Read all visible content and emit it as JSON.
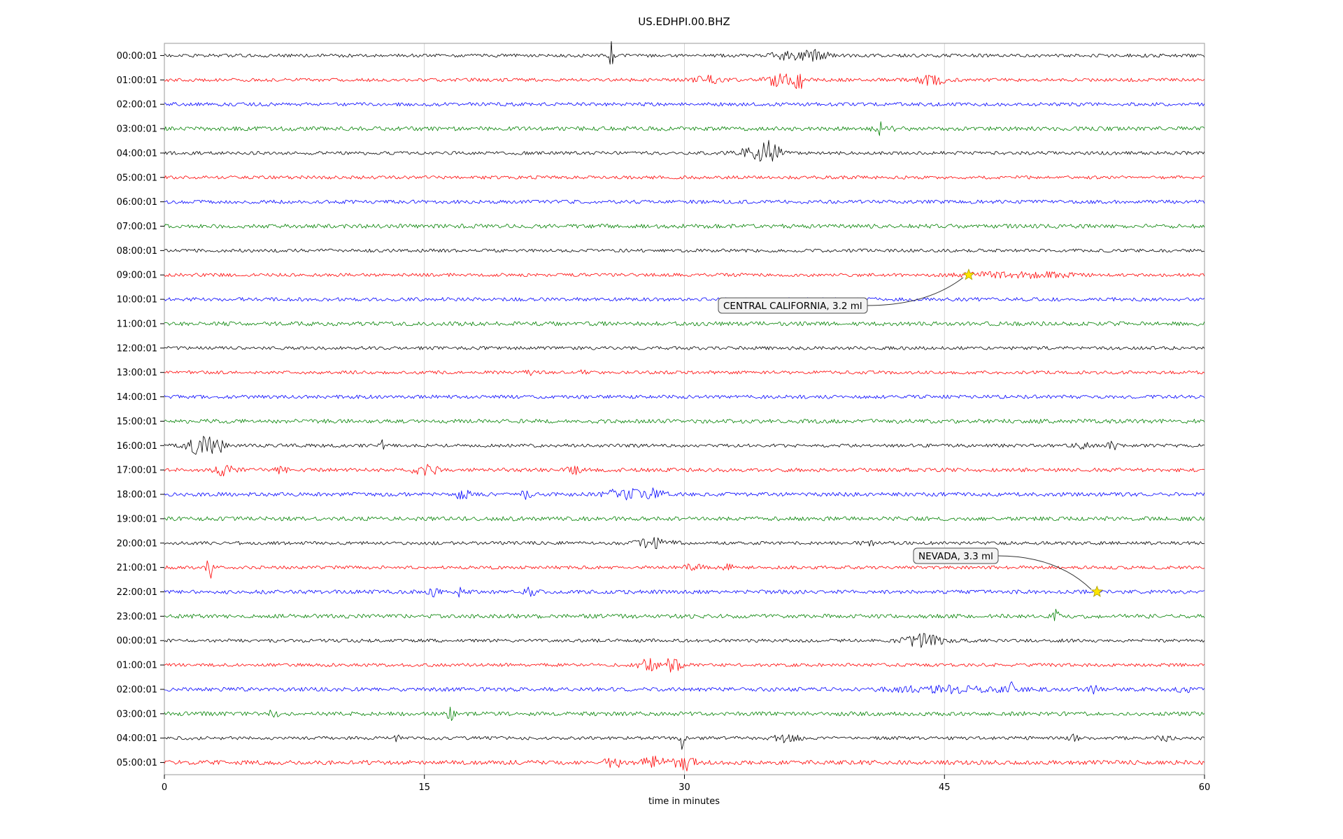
{
  "figure": {
    "title": "US.EDHPI.00.BHZ"
  },
  "chart_data": {
    "type": "line",
    "subtype": "helicorder-seismogram",
    "title": "US.EDHPI.00.BHZ",
    "xlabel": "time in minutes",
    "xlim": [
      0,
      60
    ],
    "x_ticks": [
      "0",
      "15",
      "30",
      "45",
      "60"
    ],
    "x_tick_values": [
      0,
      15,
      30,
      45,
      60
    ],
    "grid": true,
    "grid_color": "#c8c8c8",
    "color_cycle": [
      "#000000",
      "#ff0000",
      "#0000ff",
      "#008000"
    ],
    "marker": {
      "shape": "star",
      "fill": "#ffe600",
      "stroke": "#a89b00"
    },
    "rows": [
      {
        "label": "00:00:01",
        "color": "#000000",
        "noise": 2.4,
        "events": [
          {
            "m": 25.8,
            "a": 20,
            "w": 0.18
          },
          {
            "m": 36.3,
            "a": 8,
            "w": 1.2
          },
          {
            "m": 37.8,
            "a": 6,
            "w": 0.5
          }
        ]
      },
      {
        "label": "01:00:01",
        "color": "#ff0000",
        "noise": 2.4,
        "events": [
          {
            "m": 31.3,
            "a": 5,
            "w": 0.7
          },
          {
            "m": 35.6,
            "a": 8,
            "w": 1.0
          },
          {
            "m": 36.6,
            "a": 13,
            "w": 0.25
          },
          {
            "m": 44.2,
            "a": 7,
            "w": 0.9
          }
        ]
      },
      {
        "label": "02:00:01",
        "color": "#0000ff",
        "noise": 2.6,
        "events": []
      },
      {
        "label": "03:00:01",
        "color": "#008000",
        "noise": 3.0,
        "events": [
          {
            "m": 41.5,
            "a": 10,
            "w": 0.5
          }
        ]
      },
      {
        "label": "04:00:01",
        "color": "#000000",
        "noise": 2.4,
        "events": [
          {
            "m": 34.3,
            "a": 9,
            "w": 1.1
          },
          {
            "m": 35.0,
            "a": 17,
            "w": 0.4
          }
        ]
      },
      {
        "label": "05:00:01",
        "color": "#ff0000",
        "noise": 2.4,
        "events": []
      },
      {
        "label": "06:00:01",
        "color": "#0000ff",
        "noise": 2.6,
        "events": []
      },
      {
        "label": "07:00:01",
        "color": "#008000",
        "noise": 3.0,
        "events": []
      },
      {
        "label": "08:00:01",
        "color": "#000000",
        "noise": 2.4,
        "events": []
      },
      {
        "label": "09:00:01",
        "color": "#ff0000",
        "noise": 2.4,
        "events": [
          {
            "m": 48.0,
            "a": 3,
            "w": 2.0
          },
          {
            "m": 51.0,
            "a": 3,
            "w": 1.5
          }
        ]
      },
      {
        "label": "10:00:01",
        "color": "#0000ff",
        "noise": 2.6,
        "events": []
      },
      {
        "label": "11:00:01",
        "color": "#008000",
        "noise": 3.0,
        "events": []
      },
      {
        "label": "12:00:01",
        "color": "#000000",
        "noise": 2.4,
        "events": []
      },
      {
        "label": "13:00:01",
        "color": "#ff0000",
        "noise": 2.4,
        "events": [
          {
            "m": 21.0,
            "a": 3.5,
            "w": 0.3
          },
          {
            "m": 24.0,
            "a": 3.5,
            "w": 0.3
          }
        ]
      },
      {
        "label": "14:00:01",
        "color": "#0000ff",
        "noise": 2.6,
        "events": []
      },
      {
        "label": "15:00:01",
        "color": "#008000",
        "noise": 3.0,
        "events": []
      },
      {
        "label": "16:00:01",
        "color": "#000000",
        "noise": 2.4,
        "events": [
          {
            "m": 2.2,
            "a": 13,
            "w": 0.8
          },
          {
            "m": 3.1,
            "a": 8,
            "w": 0.4
          },
          {
            "m": 12.6,
            "a": 8,
            "w": 0.15
          },
          {
            "m": 53.0,
            "a": 4,
            "w": 0.4
          },
          {
            "m": 54.7,
            "a": 5,
            "w": 0.3
          }
        ]
      },
      {
        "label": "17:00:01",
        "color": "#ff0000",
        "noise": 2.8,
        "events": [
          {
            "m": 3.5,
            "a": 8,
            "w": 0.5
          },
          {
            "m": 6.7,
            "a": 4,
            "w": 0.4
          },
          {
            "m": 15.1,
            "a": 7,
            "w": 0.7
          },
          {
            "m": 23.6,
            "a": 7,
            "w": 0.35
          }
        ]
      },
      {
        "label": "18:00:01",
        "color": "#0000ff",
        "noise": 2.8,
        "events": [
          {
            "m": 17.2,
            "a": 6,
            "w": 0.4
          },
          {
            "m": 20.9,
            "a": 6,
            "w": 0.4
          },
          {
            "m": 26.5,
            "a": 8,
            "w": 0.9
          },
          {
            "m": 28.2,
            "a": 7,
            "w": 0.6
          }
        ]
      },
      {
        "label": "19:00:01",
        "color": "#008000",
        "noise": 3.0,
        "events": []
      },
      {
        "label": "20:00:01",
        "color": "#000000",
        "noise": 2.4,
        "events": [
          {
            "m": 28.3,
            "a": 7,
            "w": 0.9
          },
          {
            "m": 40.5,
            "a": 4,
            "w": 0.4
          }
        ]
      },
      {
        "label": "21:00:01",
        "color": "#ff0000",
        "noise": 2.4,
        "events": [
          {
            "m": 2.6,
            "a": 19,
            "w": 0.15
          },
          {
            "m": 30.6,
            "a": 6,
            "w": 0.5
          },
          {
            "m": 32.6,
            "a": 5,
            "w": 0.4
          }
        ]
      },
      {
        "label": "22:00:01",
        "color": "#0000ff",
        "noise": 2.8,
        "events": [
          {
            "m": 15.5,
            "a": 6,
            "w": 0.3
          },
          {
            "m": 17.0,
            "a": 9,
            "w": 0.2
          },
          {
            "m": 21.1,
            "a": 6,
            "w": 0.3
          }
        ]
      },
      {
        "label": "23:00:01",
        "color": "#008000",
        "noise": 3.0,
        "events": [
          {
            "m": 51.4,
            "a": 11,
            "w": 0.18
          }
        ]
      },
      {
        "label": "00:00:01",
        "color": "#000000",
        "noise": 2.4,
        "events": [
          {
            "m": 43.8,
            "a": 9,
            "w": 1.1
          }
        ]
      },
      {
        "label": "01:00:01",
        "color": "#ff0000",
        "noise": 2.4,
        "events": [
          {
            "m": 27.9,
            "a": 9,
            "w": 0.5
          },
          {
            "m": 29.3,
            "a": 10,
            "w": 0.5
          }
        ]
      },
      {
        "label": "02:00:01",
        "color": "#0000ff",
        "noise": 2.8,
        "events": [
          {
            "m": 45.0,
            "a": 4,
            "w": 3.5
          },
          {
            "m": 48.9,
            "a": 10,
            "w": 0.15
          },
          {
            "m": 53.6,
            "a": 5,
            "w": 0.3
          },
          {
            "m": 58.8,
            "a": 5,
            "w": 0.3
          }
        ]
      },
      {
        "label": "03:00:01",
        "color": "#008000",
        "noise": 3.0,
        "events": [
          {
            "m": 6.3,
            "a": 4,
            "w": 0.4
          },
          {
            "m": 16.5,
            "a": 9,
            "w": 0.2
          }
        ]
      },
      {
        "label": "04:00:01",
        "color": "#000000",
        "noise": 2.4,
        "events": [
          {
            "m": 13.4,
            "a": 5,
            "w": 0.2
          },
          {
            "m": 29.9,
            "a": 16,
            "w": 0.15
          },
          {
            "m": 35.9,
            "a": 5,
            "w": 0.7
          },
          {
            "m": 52.3,
            "a": 4,
            "w": 0.4
          },
          {
            "m": 57.7,
            "a": 5,
            "w": 0.3
          }
        ]
      },
      {
        "label": "05:00:01",
        "color": "#ff0000",
        "noise": 3.2,
        "events": [
          {
            "m": 25.9,
            "a": 6,
            "w": 0.5
          },
          {
            "m": 28.2,
            "a": 7,
            "w": 0.6
          },
          {
            "m": 29.9,
            "a": 13,
            "w": 0.6
          }
        ]
      }
    ],
    "annotations": [
      {
        "label": "CENTRAL CALIFORNIA, 3.2 ml",
        "region": "CENTRAL CALIFORNIA",
        "magnitude": "3.2 ml",
        "row_index": 9,
        "minute": 46.4
      },
      {
        "label": "NEVADA, 3.3 ml",
        "region": "NEVADA",
        "magnitude": "3.3 ml",
        "row_index": 22,
        "minute": 53.8
      }
    ]
  }
}
